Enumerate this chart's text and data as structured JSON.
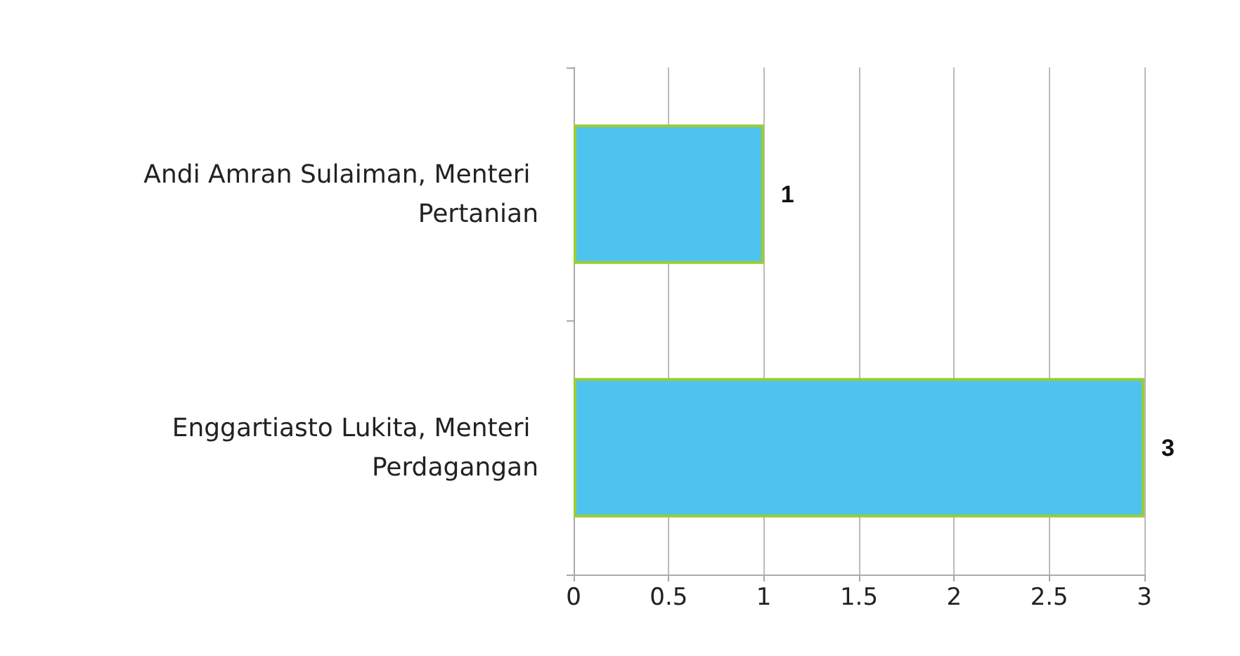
{
  "chart_data": {
    "type": "bar",
    "orientation": "horizontal",
    "categories": [
      "Andi Amran Sulaiman, Menteri Pertanian",
      "Enggartiasto Lukita, Menteri Perdagangan"
    ],
    "values": [
      1,
      3
    ],
    "color": "#4fc3f0",
    "xlim": [
      0,
      3
    ],
    "xticks": [
      0,
      0.5,
      1,
      1.5,
      2,
      2.5,
      3
    ],
    "grid": "x",
    "data_labels": true
  }
}
